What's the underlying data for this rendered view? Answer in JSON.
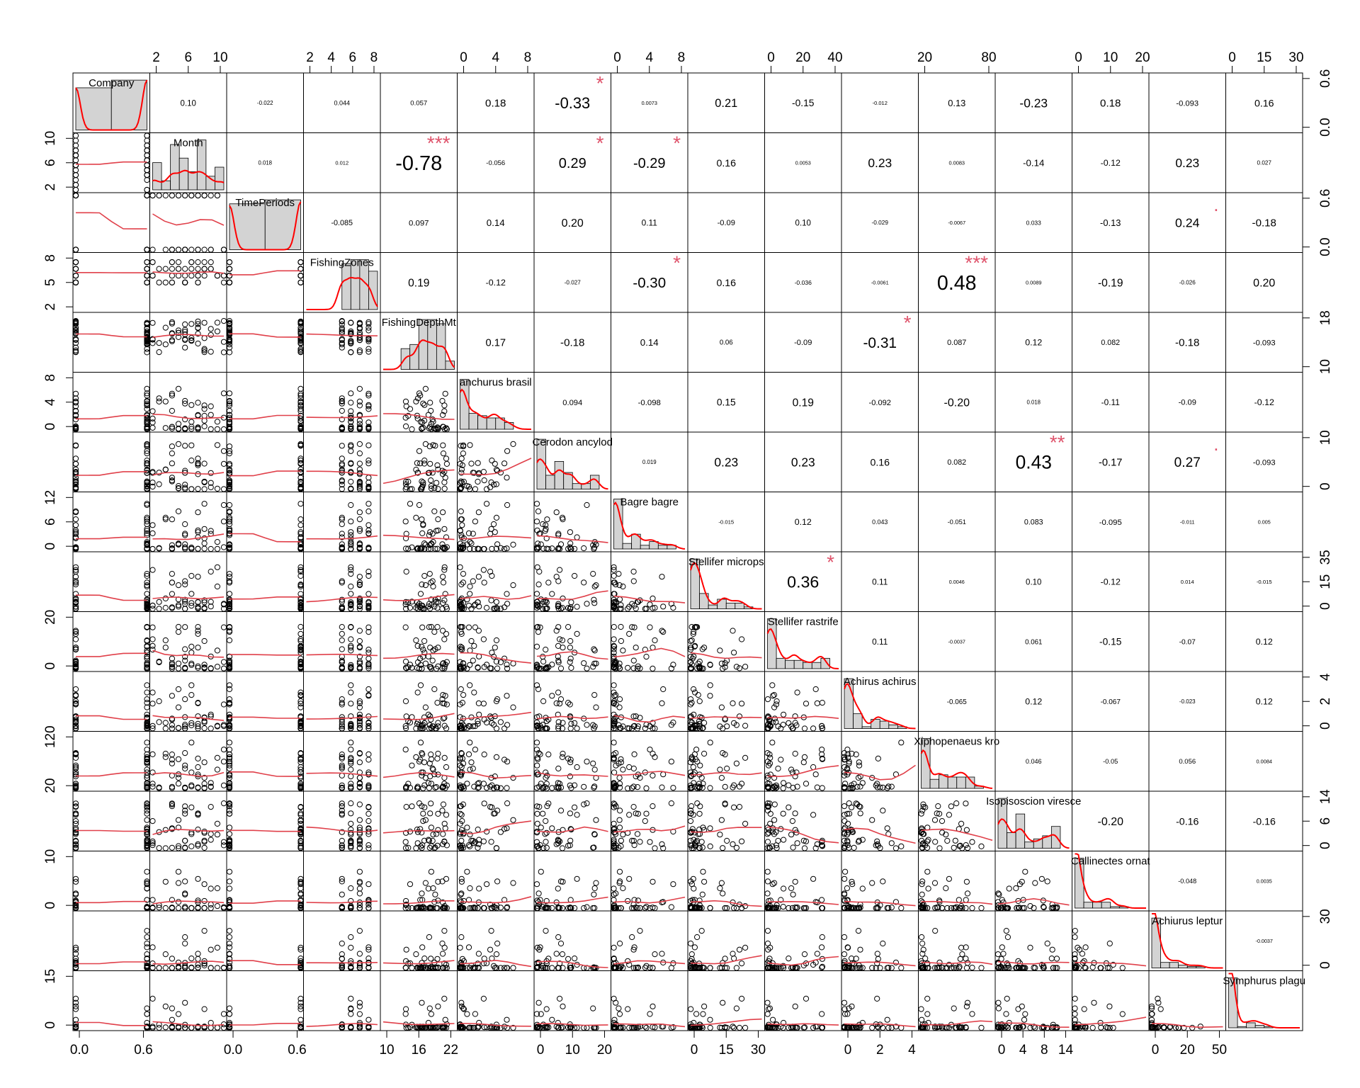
{
  "chart_data": {
    "type": "scatter",
    "variables": [
      "Company",
      "Month",
      "TimePeriods",
      "FishingZones",
      "FishingDepthMt",
      "anchurus brasil",
      "Cerodon ancylod",
      "Bagre bagre",
      "Stellifer microps",
      "Stellifer rastrife",
      "Achirus achirus",
      "Xiphopenaeus kro",
      "Isopisoscion viresce",
      "Callinectes ornat",
      "Achiurus leptur",
      "Symphurus plagu"
    ],
    "ranges": [
      [
        0,
        1
      ],
      [
        1,
        12
      ],
      [
        0,
        1
      ],
      [
        1,
        8.8
      ],
      [
        8,
        23
      ],
      [
        0,
        10.5
      ],
      [
        0,
        25
      ],
      [
        0,
        14
      ],
      [
        0,
        37
      ],
      [
        0,
        40
      ],
      [
        0,
        5
      ],
      [
        0,
        140
      ],
      [
        0,
        16
      ],
      [
        0,
        24
      ],
      [
        0,
        48
      ],
      [
        0,
        40
      ]
    ],
    "ticks": {
      "top": [
        {
          "col": 2,
          "labels": [
            "2",
            "6",
            "10"
          ]
        },
        {
          "col": 4,
          "labels": [
            "2",
            "4",
            "6",
            "8"
          ]
        },
        {
          "col": 6,
          "labels": [
            "0",
            "4",
            "8"
          ]
        },
        {
          "col": 8,
          "labels": [
            "0",
            "4",
            "8"
          ]
        },
        {
          "col": 10,
          "labels": [
            "0",
            "20",
            "40"
          ]
        },
        {
          "col": 12,
          "labels": [
            "20",
            "80"
          ]
        },
        {
          "col": 14,
          "labels": [
            "0",
            "10",
            "20"
          ]
        },
        {
          "col": 16,
          "labels": [
            "0",
            "15",
            "30"
          ]
        }
      ],
      "bottom": [
        {
          "col": 1,
          "labels": [
            "0.0",
            "0.6"
          ]
        },
        {
          "col": 3,
          "labels": [
            "0.0",
            "0.6"
          ]
        },
        {
          "col": 5,
          "labels": [
            "10",
            "16",
            "22"
          ]
        },
        {
          "col": 7,
          "labels": [
            "0",
            "10",
            "20"
          ]
        },
        {
          "col": 9,
          "labels": [
            "0",
            "15",
            "30"
          ]
        },
        {
          "col": 11,
          "labels": [
            "0",
            "2",
            "4"
          ]
        },
        {
          "col": 13,
          "labels": [
            "0",
            "4",
            "8",
            "14"
          ]
        },
        {
          "col": 15,
          "labels": [
            "0",
            "20",
            "50"
          ]
        }
      ],
      "left": [
        {
          "row": 2,
          "labels": [
            "2",
            "6",
            "10"
          ]
        },
        {
          "row": 4,
          "labels": [
            "2",
            "5",
            "8"
          ]
        },
        {
          "row": 6,
          "labels": [
            "0",
            "4",
            "8"
          ]
        },
        {
          "row": 8,
          "labels": [
            "0",
            "6",
            "12"
          ]
        },
        {
          "row": 10,
          "labels": [
            "0",
            "20"
          ]
        },
        {
          "row": 12,
          "labels": [
            "20",
            "120"
          ]
        },
        {
          "row": 14,
          "labels": [
            "0",
            "10"
          ]
        },
        {
          "row": 16,
          "labels": [
            "0",
            "15"
          ]
        }
      ],
      "right": [
        {
          "row": 1,
          "labels": [
            "0.0",
            "0.6"
          ]
        },
        {
          "row": 3,
          "labels": [
            "0.0",
            "0.6"
          ]
        },
        {
          "row": 5,
          "labels": [
            "10",
            "18"
          ]
        },
        {
          "row": 7,
          "labels": [
            "0",
            "10"
          ]
        },
        {
          "row": 9,
          "labels": [
            "0",
            "15",
            "35"
          ]
        },
        {
          "row": 11,
          "labels": [
            "0",
            "2",
            "4"
          ]
        },
        {
          "row": 13,
          "labels": [
            "0",
            "6",
            "14"
          ]
        },
        {
          "row": 15,
          "labels": [
            "0",
            "30"
          ]
        }
      ]
    },
    "correlations": [
      {
        "r": 1,
        "c": 2,
        "text": "0.10",
        "stars": ""
      },
      {
        "r": 1,
        "c": 3,
        "text": "-0.022",
        "stars": ""
      },
      {
        "r": 1,
        "c": 4,
        "text": "0.044",
        "stars": ""
      },
      {
        "r": 1,
        "c": 5,
        "text": "0.057",
        "stars": ""
      },
      {
        "r": 1,
        "c": 6,
        "text": "0.18",
        "stars": ""
      },
      {
        "r": 1,
        "c": 7,
        "text": "-0.33",
        "stars": "*"
      },
      {
        "r": 1,
        "c": 8,
        "text": "0.0073",
        "stars": ""
      },
      {
        "r": 1,
        "c": 9,
        "text": "0.21",
        "stars": ""
      },
      {
        "r": 1,
        "c": 10,
        "text": "-0.15",
        "stars": ""
      },
      {
        "r": 1,
        "c": 11,
        "text": "-0.012",
        "stars": ""
      },
      {
        "r": 1,
        "c": 12,
        "text": "0.13",
        "stars": ""
      },
      {
        "r": 1,
        "c": 13,
        "text": "-0.23",
        "stars": ""
      },
      {
        "r": 1,
        "c": 14,
        "text": "0.18",
        "stars": ""
      },
      {
        "r": 1,
        "c": 15,
        "text": "-0.093",
        "stars": ""
      },
      {
        "r": 1,
        "c": 16,
        "text": "0.16",
        "stars": ""
      },
      {
        "r": 2,
        "c": 3,
        "text": "0.018",
        "stars": ""
      },
      {
        "r": 2,
        "c": 4,
        "text": "0.012",
        "stars": ""
      },
      {
        "r": 2,
        "c": 5,
        "text": "-0.78",
        "stars": "***"
      },
      {
        "r": 2,
        "c": 6,
        "text": "-0.056",
        "stars": ""
      },
      {
        "r": 2,
        "c": 7,
        "text": "0.29",
        "stars": "*"
      },
      {
        "r": 2,
        "c": 8,
        "text": "-0.29",
        "stars": "*"
      },
      {
        "r": 2,
        "c": 9,
        "text": "0.16",
        "stars": ""
      },
      {
        "r": 2,
        "c": 10,
        "text": "0.0053",
        "stars": ""
      },
      {
        "r": 2,
        "c": 11,
        "text": "0.23",
        "stars": ""
      },
      {
        "r": 2,
        "c": 12,
        "text": "0.0083",
        "stars": ""
      },
      {
        "r": 2,
        "c": 13,
        "text": "-0.14",
        "stars": ""
      },
      {
        "r": 2,
        "c": 14,
        "text": "-0.12",
        "stars": ""
      },
      {
        "r": 2,
        "c": 15,
        "text": "0.23",
        "stars": ""
      },
      {
        "r": 2,
        "c": 16,
        "text": "0.027",
        "stars": ""
      },
      {
        "r": 3,
        "c": 4,
        "text": "-0.085",
        "stars": ""
      },
      {
        "r": 3,
        "c": 5,
        "text": "0.097",
        "stars": ""
      },
      {
        "r": 3,
        "c": 6,
        "text": "0.14",
        "stars": ""
      },
      {
        "r": 3,
        "c": 7,
        "text": "0.20",
        "stars": ""
      },
      {
        "r": 3,
        "c": 8,
        "text": "0.11",
        "stars": ""
      },
      {
        "r": 3,
        "c": 9,
        "text": "-0.09",
        "stars": ""
      },
      {
        "r": 3,
        "c": 10,
        "text": "0.10",
        "stars": ""
      },
      {
        "r": 3,
        "c": 11,
        "text": "-0.029",
        "stars": ""
      },
      {
        "r": 3,
        "c": 12,
        "text": "-0.0067",
        "stars": ""
      },
      {
        "r": 3,
        "c": 13,
        "text": "0.033",
        "stars": ""
      },
      {
        "r": 3,
        "c": 14,
        "text": "-0.13",
        "stars": ""
      },
      {
        "r": 3,
        "c": 15,
        "text": "0.24",
        "stars": "."
      },
      {
        "r": 3,
        "c": 16,
        "text": "-0.18",
        "stars": ""
      },
      {
        "r": 4,
        "c": 5,
        "text": "0.19",
        "stars": ""
      },
      {
        "r": 4,
        "c": 6,
        "text": "-0.12",
        "stars": ""
      },
      {
        "r": 4,
        "c": 7,
        "text": "-0.027",
        "stars": ""
      },
      {
        "r": 4,
        "c": 8,
        "text": "-0.30",
        "stars": "*"
      },
      {
        "r": 4,
        "c": 9,
        "text": "0.16",
        "stars": ""
      },
      {
        "r": 4,
        "c": 10,
        "text": "-0.036",
        "stars": ""
      },
      {
        "r": 4,
        "c": 11,
        "text": "-0.0061",
        "stars": ""
      },
      {
        "r": 4,
        "c": 12,
        "text": "0.48",
        "stars": "***"
      },
      {
        "r": 4,
        "c": 13,
        "text": "0.0089",
        "stars": ""
      },
      {
        "r": 4,
        "c": 14,
        "text": "-0.19",
        "stars": ""
      },
      {
        "r": 4,
        "c": 15,
        "text": "-0.026",
        "stars": ""
      },
      {
        "r": 4,
        "c": 16,
        "text": "0.20",
        "stars": ""
      },
      {
        "r": 5,
        "c": 6,
        "text": "0.17",
        "stars": ""
      },
      {
        "r": 5,
        "c": 7,
        "text": "-0.18",
        "stars": ""
      },
      {
        "r": 5,
        "c": 8,
        "text": "0.14",
        "stars": ""
      },
      {
        "r": 5,
        "c": 9,
        "text": "0.06",
        "stars": ""
      },
      {
        "r": 5,
        "c": 10,
        "text": "-0.09",
        "stars": ""
      },
      {
        "r": 5,
        "c": 11,
        "text": "-0.31",
        "stars": "*"
      },
      {
        "r": 5,
        "c": 12,
        "text": "0.087",
        "stars": ""
      },
      {
        "r": 5,
        "c": 13,
        "text": "0.12",
        "stars": ""
      },
      {
        "r": 5,
        "c": 14,
        "text": "0.082",
        "stars": ""
      },
      {
        "r": 5,
        "c": 15,
        "text": "-0.18",
        "stars": ""
      },
      {
        "r": 5,
        "c": 16,
        "text": "-0.093",
        "stars": ""
      },
      {
        "r": 6,
        "c": 7,
        "text": "0.094",
        "stars": ""
      },
      {
        "r": 6,
        "c": 8,
        "text": "-0.098",
        "stars": ""
      },
      {
        "r": 6,
        "c": 9,
        "text": "0.15",
        "stars": ""
      },
      {
        "r": 6,
        "c": 10,
        "text": "0.19",
        "stars": ""
      },
      {
        "r": 6,
        "c": 11,
        "text": "-0.092",
        "stars": ""
      },
      {
        "r": 6,
        "c": 12,
        "text": "-0.20",
        "stars": ""
      },
      {
        "r": 6,
        "c": 13,
        "text": "0.018",
        "stars": ""
      },
      {
        "r": 6,
        "c": 14,
        "text": "-0.11",
        "stars": ""
      },
      {
        "r": 6,
        "c": 15,
        "text": "-0.09",
        "stars": ""
      },
      {
        "r": 6,
        "c": 16,
        "text": "-0.12",
        "stars": ""
      },
      {
        "r": 7,
        "c": 8,
        "text": "0.019",
        "stars": ""
      },
      {
        "r": 7,
        "c": 9,
        "text": "0.23",
        "stars": ""
      },
      {
        "r": 7,
        "c": 10,
        "text": "0.23",
        "stars": ""
      },
      {
        "r": 7,
        "c": 11,
        "text": "0.16",
        "stars": ""
      },
      {
        "r": 7,
        "c": 12,
        "text": "0.082",
        "stars": ""
      },
      {
        "r": 7,
        "c": 13,
        "text": "0.43",
        "stars": "**"
      },
      {
        "r": 7,
        "c": 14,
        "text": "-0.17",
        "stars": ""
      },
      {
        "r": 7,
        "c": 15,
        "text": "0.27",
        "stars": "."
      },
      {
        "r": 7,
        "c": 16,
        "text": "-0.093",
        "stars": ""
      },
      {
        "r": 8,
        "c": 9,
        "text": "-0.015",
        "stars": ""
      },
      {
        "r": 8,
        "c": 10,
        "text": "0.12",
        "stars": ""
      },
      {
        "r": 8,
        "c": 11,
        "text": "0.043",
        "stars": ""
      },
      {
        "r": 8,
        "c": 12,
        "text": "-0.051",
        "stars": ""
      },
      {
        "r": 8,
        "c": 13,
        "text": "0.083",
        "stars": ""
      },
      {
        "r": 8,
        "c": 14,
        "text": "-0.095",
        "stars": ""
      },
      {
        "r": 8,
        "c": 15,
        "text": "-0.011",
        "stars": ""
      },
      {
        "r": 8,
        "c": 16,
        "text": "0.005",
        "stars": ""
      },
      {
        "r": 9,
        "c": 10,
        "text": "0.36",
        "stars": "*"
      },
      {
        "r": 9,
        "c": 11,
        "text": "0.11",
        "stars": ""
      },
      {
        "r": 9,
        "c": 12,
        "text": "0.0046",
        "stars": ""
      },
      {
        "r": 9,
        "c": 13,
        "text": "0.10",
        "stars": ""
      },
      {
        "r": 9,
        "c": 14,
        "text": "-0.12",
        "stars": ""
      },
      {
        "r": 9,
        "c": 15,
        "text": "0.014",
        "stars": ""
      },
      {
        "r": 9,
        "c": 16,
        "text": "-0.015",
        "stars": ""
      },
      {
        "r": 10,
        "c": 11,
        "text": "0.11",
        "stars": ""
      },
      {
        "r": 10,
        "c": 12,
        "text": "-0.0037",
        "stars": ""
      },
      {
        "r": 10,
        "c": 13,
        "text": "0.061",
        "stars": ""
      },
      {
        "r": 10,
        "c": 14,
        "text": "-0.15",
        "stars": ""
      },
      {
        "r": 10,
        "c": 15,
        "text": "-0.07",
        "stars": ""
      },
      {
        "r": 10,
        "c": 16,
        "text": "0.12",
        "stars": ""
      },
      {
        "r": 11,
        "c": 12,
        "text": "-0.065",
        "stars": ""
      },
      {
        "r": 11,
        "c": 13,
        "text": "0.12",
        "stars": ""
      },
      {
        "r": 11,
        "c": 14,
        "text": "-0.067",
        "stars": ""
      },
      {
        "r": 11,
        "c": 15,
        "text": "-0.023",
        "stars": ""
      },
      {
        "r": 11,
        "c": 16,
        "text": "0.12",
        "stars": ""
      },
      {
        "r": 12,
        "c": 13,
        "text": "0.046",
        "stars": ""
      },
      {
        "r": 12,
        "c": 14,
        "text": "-0.05",
        "stars": ""
      },
      {
        "r": 12,
        "c": 15,
        "text": "0.056",
        "stars": ""
      },
      {
        "r": 12,
        "c": 16,
        "text": "0.0084",
        "stars": ""
      },
      {
        "r": 13,
        "c": 14,
        "text": "-0.20",
        "stars": ""
      },
      {
        "r": 13,
        "c": 15,
        "text": "-0.16",
        "stars": ""
      },
      {
        "r": 13,
        "c": 16,
        "text": "-0.16",
        "stars": ""
      },
      {
        "r": 14,
        "c": 15,
        "text": "-0.048",
        "stars": ""
      },
      {
        "r": 14,
        "c": 16,
        "text": "0.0035",
        "stars": ""
      },
      {
        "r": 15,
        "c": 16,
        "text": "-0.0037",
        "stars": ""
      }
    ],
    "colors": {
      "curve": "#ff0000",
      "smooth": "#e0404a",
      "stars": "#df536b",
      "bar_fill": "#d3d3d3"
    }
  }
}
